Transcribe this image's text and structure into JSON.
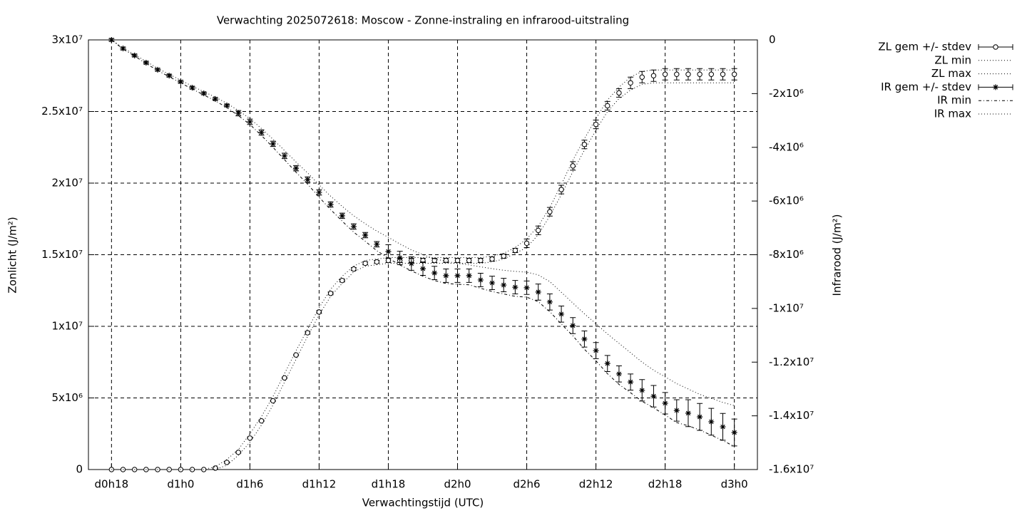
{
  "chart_data": {
    "type": "line",
    "title": "Verwachting 2025072618: Moscow - Zonne-instraling en infrarood-uitstraling",
    "x_label": "Verwachtingstijd (UTC)",
    "y_label": "Zonlicht (J/m²)",
    "y2_label": "Infrarood (J/m²)",
    "categories": [
      "d0h18",
      null,
      null,
      null,
      null,
      null,
      "d1h0",
      null,
      null,
      null,
      null,
      null,
      "d1h6",
      null,
      null,
      null,
      null,
      null,
      "d1h12",
      null,
      null,
      null,
      null,
      null,
      "d1h18",
      null,
      null,
      null,
      null,
      null,
      "d2h0",
      null,
      null,
      null,
      null,
      null,
      "d2h6",
      null,
      null,
      null,
      null,
      null,
      "d2h12",
      null,
      null,
      null,
      null,
      null,
      "d2h18",
      null,
      null,
      null,
      null,
      null,
      "d3h0"
    ],
    "ylim": [
      0,
      30000000.0
    ],
    "yticks": [
      0,
      {
        "value": 5000000.0,
        "label": "5x10⁶"
      },
      {
        "value": 10000000.0,
        "label": "1x10⁷"
      },
      {
        "value": 15000000.0,
        "label": "1.5x10⁷"
      },
      {
        "value": 20000000.0,
        "label": "2x10⁷"
      },
      {
        "value": 25000000.0,
        "label": "2.5x10⁷"
      },
      {
        "value": 30000000.0,
        "label": "3x10⁷"
      }
    ],
    "y2lim": [
      -16000000.0,
      0
    ],
    "y2ticks": [
      0,
      {
        "value": -2000000.0,
        "label": "-2x10⁶"
      },
      {
        "value": -4000000.0,
        "label": "-4x10⁶"
      },
      {
        "value": -6000000.0,
        "label": "-6x10⁶"
      },
      {
        "value": -8000000.0,
        "label": "-8x10⁶"
      },
      {
        "value": -10000000.0,
        "label": "-1x10⁷"
      },
      {
        "value": -12000000.0,
        "label": "-1.2x10⁷"
      },
      {
        "value": -14000000.0,
        "label": "-1.4x10⁷"
      },
      {
        "value": -16000000.0,
        "label": "-1.6x10⁷"
      }
    ],
    "grid": true,
    "legend": "top-right",
    "series": [
      {
        "name": "ZL gem +/- stdev",
        "color": "#000000",
        "style": "points",
        "marker": "circle",
        "values": [
          0,
          0,
          0,
          0,
          0,
          0,
          0,
          0,
          0,
          100000.0,
          500000.0,
          1200000.0,
          2200000.0,
          3400000.0,
          4800000.0,
          6400000.0,
          8000000.0,
          9550000.0,
          11000000.0,
          12300000.0,
          13200000.0,
          14000000.0,
          14400000.0,
          14500000.0,
          14600000.0,
          14600000.0,
          14600000.0,
          14600000.0,
          14600000.0,
          14600000.0,
          14600000.0,
          14600000.0,
          14600000.0,
          14700000.0,
          14900000.0,
          15300000.0,
          15800000.0,
          16700000.0,
          18000000.0,
          19550000.0,
          21200000.0,
          22700000.0,
          24100000.0,
          25400000.0,
          26300000.0,
          27000000.0,
          27400000.0,
          27500000.0,
          27600000.0,
          27600000.0,
          27600000.0,
          27600000.0,
          27600000.0,
          27600000.0,
          27600000.0
        ],
        "errors": [
          0,
          0,
          0,
          0,
          0,
          0,
          0,
          0,
          0,
          50000.0,
          50000.0,
          50000.0,
          50000.0,
          50000.0,
          50000.0,
          50000.0,
          50000.0,
          100000.0,
          100000.0,
          100000.0,
          100000.0,
          100000.0,
          100000.0,
          100000.0,
          150000.0,
          150000.0,
          150000.0,
          150000.0,
          150000.0,
          150000.0,
          150000.0,
          150000.0,
          150000.0,
          150000.0,
          150000.0,
          150000.0,
          300000.0,
          300000.0,
          300000.0,
          300000.0,
          300000.0,
          300000.0,
          300000.0,
          300000.0,
          300000.0,
          400000.0,
          400000.0,
          400000.0,
          400000.0,
          400000.0,
          400000.0,
          400000.0,
          400000.0,
          400000.0,
          400000.0
        ]
      },
      {
        "name": "ZL min",
        "color": "#000000",
        "style": "dotted",
        "values": [
          0,
          0,
          0,
          0,
          0,
          0,
          0,
          0,
          0,
          0,
          300000.0,
          1000000.0,
          1900000.0,
          3100000.0,
          4500000.0,
          6100000.0,
          7700000.0,
          9300000.0,
          10800000.0,
          12100000.0,
          13000000.0,
          13800000.0,
          14200000.0,
          14300000.0,
          14400000.0,
          14400000.0,
          14400000.0,
          14400000.0,
          14400000.0,
          14400000.0,
          14400000.0,
          14400000.0,
          14400000.0,
          14500000.0,
          14700000.0,
          15100000.0,
          15500000.0,
          16400000.0,
          17700000.0,
          19200000.0,
          20800000.0,
          22300000.0,
          23700000.0,
          25000000.0,
          25900000.0,
          26500000.0,
          26900000.0,
          27000000.0,
          27000000.0,
          27000000.0,
          27000000.0,
          27000000.0,
          27000000.0,
          27000000.0,
          27000000.0
        ]
      },
      {
        "name": "ZL max",
        "color": "#000000",
        "style": "dotted",
        "values": [
          0,
          0,
          0,
          0,
          0,
          0,
          0,
          0,
          0,
          200000.0,
          700000.0,
          1400000.0,
          2500000.0,
          3700000.0,
          5100000.0,
          6700000.0,
          8300000.0,
          9800000.0,
          11300000.0,
          12600000.0,
          13500000.0,
          14200000.0,
          14600000.0,
          14700000.0,
          14800000.0,
          14800000.0,
          14800000.0,
          14800000.0,
          14800000.0,
          14800000.0,
          14800000.0,
          14800000.0,
          14800000.0,
          14900000.0,
          15100000.0,
          15500000.0,
          16100000.0,
          17000000.0,
          18300000.0,
          19900000.0,
          21600000.0,
          23100000.0,
          24500000.0,
          25800000.0,
          26700000.0,
          27400000.0,
          27800000.0,
          27900000.0,
          27900000.0,
          27900000.0,
          27900000.0,
          27900000.0,
          27900000.0,
          27900000.0,
          27900000.0
        ]
      },
      {
        "name": "IR gem +/- stdev",
        "color": "#000000",
        "style": "points",
        "marker": "star",
        "axis": "y2",
        "values": [
          0,
          -320000.0,
          -580000.0,
          -850000.0,
          -1110000.0,
          -1330000.0,
          -1560000.0,
          -1780000.0,
          -1990000.0,
          -2200000.0,
          -2440000.0,
          -2730000.0,
          -3050000.0,
          -3450000.0,
          -3870000.0,
          -4320000.0,
          -4780000.0,
          -5200000.0,
          -5680000.0,
          -6130000.0,
          -6550000.0,
          -6950000.0,
          -7270000.0,
          -7610000.0,
          -7880000.0,
          -8120000.0,
          -8330000.0,
          -8520000.0,
          -8680000.0,
          -8780000.0,
          -8780000.0,
          -8780000.0,
          -8940000.0,
          -9050000.0,
          -9130000.0,
          -9210000.0,
          -9230000.0,
          -9390000.0,
          -9760000.0,
          -10210000.0,
          -10640000.0,
          -11140000.0,
          -11570000.0,
          -12050000.0,
          -12440000.0,
          -12740000.0,
          -13050000.0,
          -13270000.0,
          -13530000.0,
          -13800000.0,
          -13900000.0,
          -14040000.0,
          -14220000.0,
          -14410000.0,
          -14620000.0
        ],
        "errors": [
          50000.0,
          50000.0,
          50000.0,
          50000.0,
          50000.0,
          50000.0,
          50000.0,
          50000.0,
          50000.0,
          50000.0,
          50000.0,
          100000.0,
          100000.0,
          100000.0,
          100000.0,
          100000.0,
          100000.0,
          100000.0,
          100000.0,
          100000.0,
          100000.0,
          100000.0,
          100000.0,
          100000.0,
          250000.0,
          250000.0,
          250000.0,
          250000.0,
          250000.0,
          250000.0,
          250000.0,
          250000.0,
          250000.0,
          250000.0,
          250000.0,
          250000.0,
          250000.0,
          300000.0,
          300000.0,
          300000.0,
          300000.0,
          300000.0,
          300000.0,
          300000.0,
          300000.0,
          300000.0,
          400000.0,
          400000.0,
          400000.0,
          400000.0,
          500000.0,
          500000.0,
          500000.0,
          500000.0,
          500000.0
        ]
      },
      {
        "name": "IR min",
        "color": "#000000",
        "style": "dashdot",
        "axis": "y2",
        "values": [
          0,
          -340000.0,
          -600000.0,
          -880000.0,
          -1140000.0,
          -1370000.0,
          -1600000.0,
          -1830000.0,
          -2050000.0,
          -2270000.0,
          -2520000.0,
          -2820000.0,
          -3150000.0,
          -3560000.0,
          -4000000.0,
          -4460000.0,
          -4930000.0,
          -5370000.0,
          -5860000.0,
          -6320000.0,
          -6750000.0,
          -7160000.0,
          -7500000.0,
          -7850000.0,
          -8130000.0,
          -8380000.0,
          -8600000.0,
          -8800000.0,
          -8960000.0,
          -9070000.0,
          -9100000.0,
          -9120000.0,
          -9250000.0,
          -9370000.0,
          -9460000.0,
          -9550000.0,
          -9580000.0,
          -9750000.0,
          -10120000.0,
          -10580000.0,
          -11020000.0,
          -11520000.0,
          -11950000.0,
          -12430000.0,
          -12830000.0,
          -13140000.0,
          -13460000.0,
          -13700000.0,
          -13970000.0,
          -14250000.0,
          -14370000.0,
          -14530000.0,
          -14720000.0,
          -14920000.0,
          -15140000.0
        ]
      },
      {
        "name": "IR max",
        "color": "#000000",
        "style": "dotted",
        "axis": "y2",
        "values": [
          0,
          -300000.0,
          -550000.0,
          -800000.0,
          -1060000.0,
          -1280000.0,
          -1500000.0,
          -1720000.0,
          -1930000.0,
          -2130000.0,
          -2360000.0,
          -2630000.0,
          -2930000.0,
          -3300000.0,
          -3700000.0,
          -4120000.0,
          -4550000.0,
          -4950000.0,
          -5400000.0,
          -5820000.0,
          -6200000.0,
          -6550000.0,
          -6850000.0,
          -7120000.0,
          -7350000.0,
          -7600000.0,
          -7820000.0,
          -8000000.0,
          -8150000.0,
          -8250000.0,
          -8320000.0,
          -8380000.0,
          -8450000.0,
          -8520000.0,
          -8580000.0,
          -8620000.0,
          -8650000.0,
          -8750000.0,
          -9000000.0,
          -9400000.0,
          -9800000.0,
          -10200000.0,
          -10570000.0,
          -10950000.0,
          -11300000.0,
          -11650000.0,
          -12000000.0,
          -12300000.0,
          -12550000.0,
          -12800000.0,
          -13000000.0,
          -13200000.0,
          -13350000.0,
          -13500000.0,
          -13620000.0
        ]
      }
    ]
  }
}
